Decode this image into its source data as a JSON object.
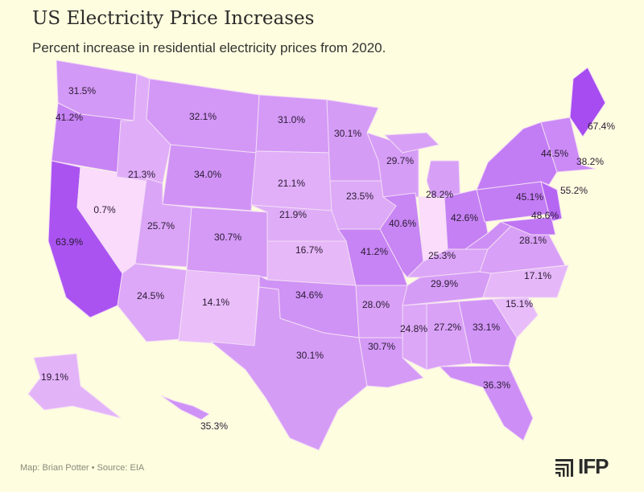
{
  "header": {
    "title": "US Electricity Price Increases",
    "subtitle": "Percent increase in residential electricity prices from 2020."
  },
  "footer": {
    "credit": "Map: Brian Potter • Source: EIA",
    "logo": "IFP"
  },
  "colors": {
    "background": "#fefddf",
    "low": "#fbdcfb",
    "high": "#a64cf0",
    "border": "#f3dcf5"
  },
  "chart_data": {
    "type": "choropleth-map",
    "title": "US Electricity Price Increases",
    "unit": "percent",
    "values": {
      "WA": "31.5%",
      "OR": "41.2%",
      "CA": "63.9%",
      "NV": "0.7%",
      "ID": "21.3%",
      "MT": "32.1%",
      "WY": "34.0%",
      "UT": "25.7%",
      "CO": "30.7%",
      "AZ": "24.5%",
      "NM": "14.1%",
      "ND": "31.0%",
      "SD": "21.1%",
      "NE": "21.9%",
      "KS": "16.7%",
      "OK": "34.6%",
      "TX": "30.1%",
      "MN": "30.1%",
      "IA": "23.5%",
      "MO": "41.2%",
      "AR": "28.0%",
      "LA": "30.7%",
      "WI": "29.7%",
      "IL": "40.6%",
      "MI": "28.2%",
      "OH": "42.6%",
      "KY": "25.3%",
      "TN": "29.9%",
      "MS": "24.8%",
      "AL": "27.2%",
      "GA": "33.1%",
      "FL": "36.3%",
      "SC": "15.1%",
      "NC": "17.1%",
      "VA": "28.1%",
      "PA": "45.1%",
      "NY": "44.5%",
      "NJ": "55.2%",
      "MD": "48.6%",
      "NE_REGION": "38.2%",
      "ME": "67.4%",
      "AK": "19.1%",
      "HI": "35.3%"
    }
  }
}
